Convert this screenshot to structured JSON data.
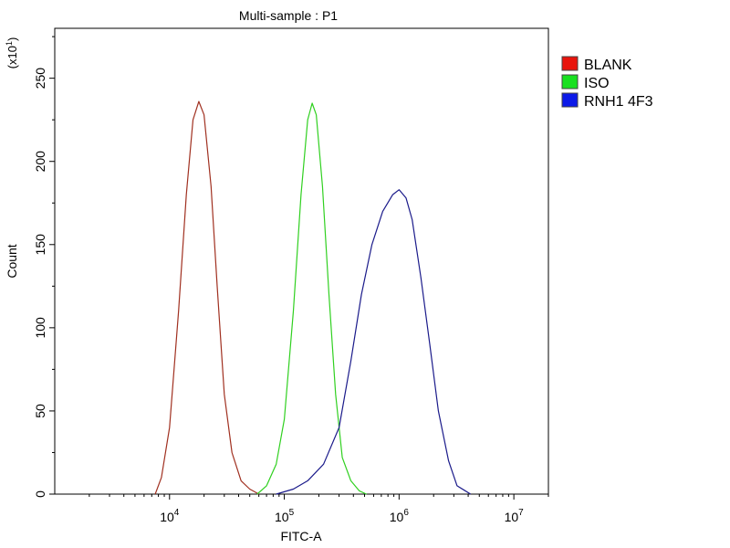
{
  "chart_data": {
    "type": "area",
    "title": "Multi-sample : P1",
    "xlabel": "FITC-A",
    "ylabel": "Count",
    "y_multiplier_label": {
      "base": "(x10",
      "exp": "1",
      "close": ")"
    },
    "x_scale": "log",
    "xlim": [
      1000,
      20000000
    ],
    "ylim": [
      0,
      280
    ],
    "x_ticks": [
      {
        "value": 10000,
        "base": "10",
        "exp": "4"
      },
      {
        "value": 100000,
        "base": "10",
        "exp": "5"
      },
      {
        "value": 1000000,
        "base": "10",
        "exp": "6"
      },
      {
        "value": 10000000,
        "base": "10",
        "exp": "7"
      }
    ],
    "y_ticks": [
      {
        "value": 0,
        "label": "0"
      },
      {
        "value": 50,
        "label": "50"
      },
      {
        "value": 100,
        "label": "100"
      },
      {
        "value": 150,
        "label": "150"
      },
      {
        "value": 200,
        "label": "200"
      },
      {
        "value": 250,
        "label": "250"
      }
    ],
    "grid": false,
    "legend_position": "right",
    "series": [
      {
        "name": "BLANK",
        "color": "#a03020",
        "legend_color": "#e8140c",
        "points": [
          [
            7500,
            0
          ],
          [
            8500,
            10
          ],
          [
            10000,
            40
          ],
          [
            12000,
            110
          ],
          [
            14000,
            180
          ],
          [
            16000,
            225
          ],
          [
            18000,
            236
          ],
          [
            20000,
            228
          ],
          [
            23000,
            185
          ],
          [
            26000,
            125
          ],
          [
            30000,
            60
          ],
          [
            35000,
            25
          ],
          [
            42000,
            8
          ],
          [
            50000,
            3
          ],
          [
            60000,
            0
          ]
        ]
      },
      {
        "name": "ISO",
        "color": "#30d020",
        "legend_color": "#18e020",
        "points": [
          [
            58000,
            0
          ],
          [
            70000,
            5
          ],
          [
            85000,
            18
          ],
          [
            100000,
            45
          ],
          [
            120000,
            110
          ],
          [
            140000,
            180
          ],
          [
            160000,
            225
          ],
          [
            175000,
            235
          ],
          [
            190000,
            228
          ],
          [
            215000,
            185
          ],
          [
            245000,
            120
          ],
          [
            280000,
            60
          ],
          [
            320000,
            22
          ],
          [
            380000,
            8
          ],
          [
            450000,
            2
          ],
          [
            520000,
            0
          ]
        ]
      },
      {
        "name": "RNH1 4F3",
        "color": "#1a1a8a",
        "legend_color": "#0c1ae8",
        "points": [
          [
            85000,
            0
          ],
          [
            120000,
            3
          ],
          [
            160000,
            8
          ],
          [
            220000,
            18
          ],
          [
            300000,
            40
          ],
          [
            380000,
            80
          ],
          [
            470000,
            120
          ],
          [
            580000,
            150
          ],
          [
            720000,
            170
          ],
          [
            880000,
            180
          ],
          [
            1000000,
            183
          ],
          [
            1150000,
            178
          ],
          [
            1300000,
            165
          ],
          [
            1550000,
            130
          ],
          [
            1850000,
            90
          ],
          [
            2200000,
            50
          ],
          [
            2700000,
            20
          ],
          [
            3200000,
            5
          ],
          [
            4200000,
            0
          ]
        ]
      }
    ]
  }
}
